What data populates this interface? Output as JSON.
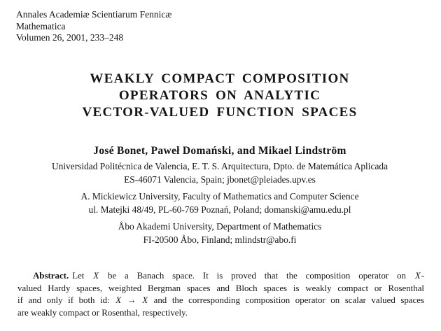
{
  "journal": {
    "name": "Annales Academiæ Scientiarum Fennicæ",
    "series": "Mathematica",
    "volume": "Volumen 26, 2001, 233–248"
  },
  "title": {
    "line1": "WEAKLY COMPACT COMPOSITION",
    "line2": "OPERATORS ON ANALYTIC",
    "line3": "VECTOR-VALUED FUNCTION SPACES"
  },
  "authors": "José Bonet, Paweł Domański, and Mikael Lindström",
  "affiliations": [
    {
      "line1": "Universidad Politécnica de Valencia, E. T. S. Arquitectura, Dpto. de Matemática Aplicada",
      "line2": "ES-46071 Valencia, Spain; jbonet@pleiades.upv.es"
    },
    {
      "line1": "A. Mickiewicz University, Faculty of Mathematics and Computer Science",
      "line2": "ul. Matejki 48/49, PL-60-769 Poznań, Poland; domanski@amu.edu.pl"
    },
    {
      "line1": "Åbo Akademi University, Department of Mathematics",
      "line2": "FI-20500 Åbo, Finland; mlindstr@abo.fi"
    }
  ],
  "abstract": {
    "label": "Abstract.",
    "l1a": "Let ",
    "l1x1": "X",
    "l1b": " be a Banach space. It is proved that the composition operator on ",
    "l1x2": "X",
    "l1c": "-",
    "l2": "valued Hardy spaces, weighted Bergman spaces and Bloch spaces is weakly compact or Rosenthal",
    "l3a": "if and only if both id: ",
    "l3x1": "X",
    "l3arrow": " → ",
    "l3x2": "X",
    "l3b": " and the corresponding composition operator on scalar valued spaces",
    "l4": "are weakly compact or Rosenthal, respectively."
  }
}
